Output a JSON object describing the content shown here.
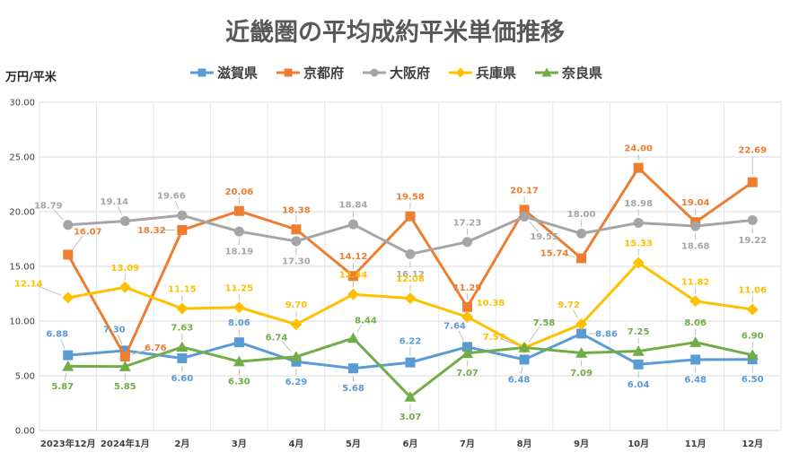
{
  "chart_data": {
    "type": "line",
    "title": "近畿圏の平均成約平米単価推移",
    "ylabel": "万円/平米",
    "xlabel": "",
    "ylim": [
      0,
      30
    ],
    "yticks": [
      "0.00",
      "5.00",
      "10.00",
      "15.00",
      "20.00",
      "25.00",
      "30.00"
    ],
    "categories": [
      "2023年12月",
      "2024年1月",
      "2月",
      "3月",
      "4月",
      "5月",
      "6月",
      "7月",
      "8月",
      "9月",
      "10月",
      "11月",
      "12月"
    ],
    "legend_position": "top",
    "grid": true,
    "series": [
      {
        "name": "滋賀県",
        "color": "#5B9BD5",
        "marker": "square",
        "values": [
          6.88,
          7.3,
          6.6,
          8.06,
          6.29,
          5.68,
          6.22,
          7.64,
          6.48,
          8.86,
          6.04,
          6.48,
          6.5
        ],
        "labels": [
          "6.88",
          "7.30",
          "6.60",
          "8.06",
          "6.29",
          "5.68",
          "6.22",
          "7.64",
          "6.48",
          "8.86",
          "6.04",
          "6.48",
          "6.50"
        ]
      },
      {
        "name": "京都府",
        "color": "#ED7D31",
        "marker": "square",
        "values": [
          16.07,
          6.76,
          18.32,
          20.06,
          18.38,
          14.12,
          19.58,
          11.29,
          20.17,
          15.74,
          24.0,
          19.04,
          22.69
        ],
        "labels": [
          "16.07",
          "6.76",
          "18.32",
          "20.06",
          "18.38",
          "14.12",
          "19.58",
          "11.29",
          "20.17",
          "15.74",
          "24.00",
          "19.04",
          "22.69"
        ]
      },
      {
        "name": "大阪府",
        "color": "#A5A5A5",
        "marker": "circle",
        "values": [
          18.79,
          19.14,
          19.66,
          18.19,
          17.3,
          18.84,
          16.12,
          17.23,
          19.55,
          18.0,
          18.98,
          18.68,
          19.22
        ],
        "labels": [
          "18.79",
          "19.14",
          "19.66",
          "18.19",
          "17.30",
          "18.84",
          "16.12",
          "17.23",
          "19.55",
          "18.00",
          "18.98",
          "18.68",
          "19.22"
        ]
      },
      {
        "name": "兵庫県",
        "color": "#FFC000",
        "marker": "diamond",
        "values": [
          12.14,
          13.09,
          11.15,
          11.25,
          9.7,
          12.44,
          12.08,
          10.38,
          7.57,
          9.72,
          15.33,
          11.82,
          11.06
        ],
        "labels": [
          "12.14",
          "13.09",
          "11.15",
          "11.25",
          "9.70",
          "12.44",
          "12.08",
          "10.38",
          "7.57",
          "9.72",
          "15.33",
          "11.82",
          "11.06"
        ]
      },
      {
        "name": "奈良県",
        "color": "#70AD47",
        "marker": "triangle",
        "values": [
          5.87,
          5.85,
          7.63,
          6.3,
          6.74,
          8.44,
          3.07,
          7.07,
          7.58,
          7.09,
          7.25,
          8.06,
          6.9
        ],
        "labels": [
          "5.87",
          "5.85",
          "7.63",
          "6.30",
          "6.74",
          "8.44",
          "3.07",
          "7.07",
          "7.58",
          "7.09",
          "7.25",
          "8.06",
          "6.90"
        ]
      }
    ]
  }
}
